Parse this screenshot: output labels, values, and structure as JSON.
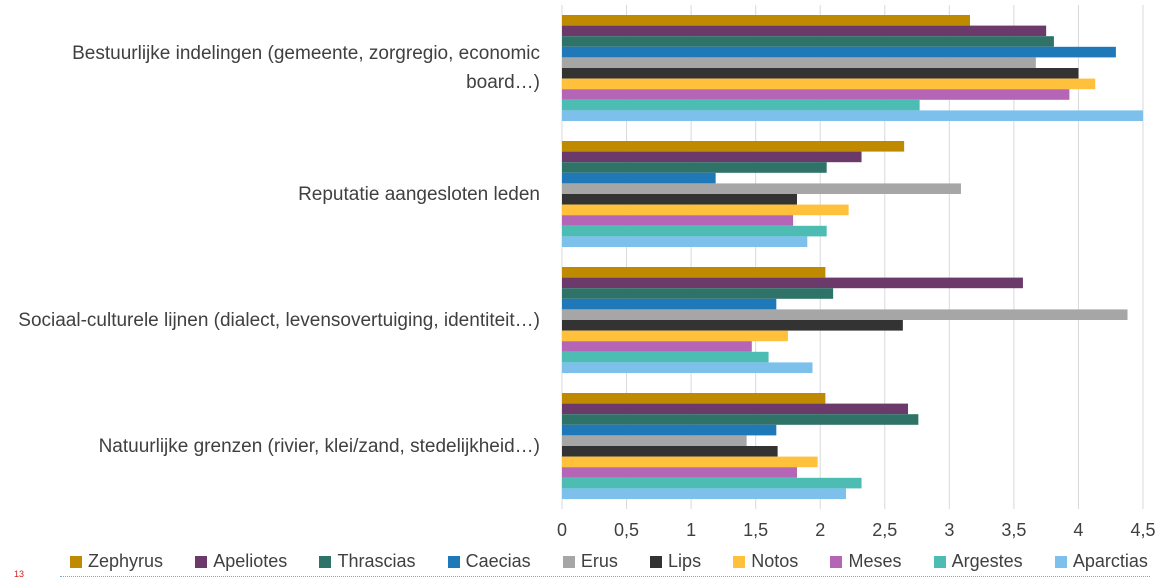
{
  "chart_data": {
    "type": "hbar",
    "categories": [
      "Bestuurlijke indelingen (gemeente, zorgregio, economic board…)",
      "Reputatie aangesloten leden",
      "Sociaal-culturele lijnen (dialect, levensovertuiging, identiteit…)",
      "Natuurlijke grenzen (rivier, klei/zand, stedelijkheid…)"
    ],
    "series": [
      {
        "name": "Zephyrus",
        "color": "#c08a00",
        "values": [
          3.16,
          2.65,
          2.04,
          2.04
        ]
      },
      {
        "name": "Apeliotes",
        "color": "#6b3a6b",
        "values": [
          3.75,
          2.32,
          3.57,
          2.68
        ]
      },
      {
        "name": "Thrascias",
        "color": "#2e7268",
        "values": [
          3.81,
          2.05,
          2.1,
          2.76
        ]
      },
      {
        "name": "Caecias",
        "color": "#1f78b8",
        "values": [
          4.29,
          1.19,
          1.66,
          1.66
        ]
      },
      {
        "name": "Erus",
        "color": "#a6a6a6",
        "values": [
          3.67,
          3.09,
          4.38,
          1.43
        ]
      },
      {
        "name": "Lips",
        "color": "#333333",
        "values": [
          4.0,
          1.82,
          2.64,
          1.67
        ]
      },
      {
        "name": "Notos",
        "color": "#ffc13b",
        "values": [
          4.13,
          2.22,
          1.75,
          1.98
        ]
      },
      {
        "name": "Meses",
        "color": "#b565b5",
        "values": [
          3.93,
          1.79,
          1.47,
          1.82
        ]
      },
      {
        "name": "Argestes",
        "color": "#4dbdb4",
        "values": [
          2.77,
          2.05,
          1.6,
          2.32
        ]
      },
      {
        "name": "Aparctias",
        "color": "#7cc0eb",
        "values": [
          4.5,
          1.9,
          1.94,
          2.2
        ]
      }
    ],
    "xlim": [
      0,
      4.5
    ],
    "xticks": [
      0,
      {
        "value": 0.5,
        "label": "0,5"
      },
      1,
      {
        "value": 1.5,
        "label": "1,5"
      },
      2,
      {
        "value": 2.5,
        "label": "2,5"
      },
      3,
      {
        "value": 3.5,
        "label": "3,5"
      },
      4,
      {
        "value": 4.5,
        "label": "4,5"
      }
    ],
    "grid": true,
    "legend": "bottom",
    "page_number": "13"
  }
}
